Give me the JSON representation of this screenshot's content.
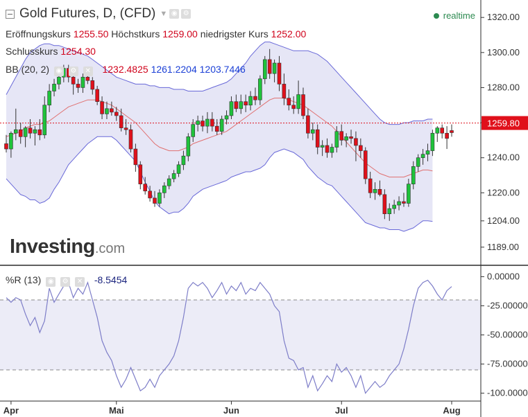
{
  "header": {
    "title": "Gold Futures, D, (CFD)",
    "realtime_label": "realtime",
    "open_label": "Eröffnungskurs",
    "open_value": "1255.50",
    "high_label": "Höchstkurs",
    "high_value": "1259.00",
    "low_label": "niedrigster Kurs",
    "low_value": "1252.00",
    "close_label": "Schlusskurs",
    "close_value": "1254.30"
  },
  "bb_legend": {
    "label": "BB (20, 2)",
    "middle": "1232.4825",
    "upper": "1261.2204",
    "lower": "1203.7446"
  },
  "wr_legend": {
    "label": "%R (13)",
    "value": "-8.5454"
  },
  "logo": {
    "name": "Investing",
    "suffix": ".com"
  },
  "colors": {
    "up": "#1fc23b",
    "down": "#e0101b",
    "bb_fill": "#e6e6f6",
    "bb_band": "#6868d8",
    "bb_mid": "#e07070",
    "wr_line": "#7d7dc8",
    "price_line": "#e0101b"
  },
  "chart_data": [
    {
      "type": "candlestick",
      "title": "Gold Futures, D, (CFD)",
      "x_ticks": [
        "Apr",
        "Mai",
        "Jun",
        "Jul",
        "Aug"
      ],
      "x_tick_index": [
        1,
        23,
        47,
        70,
        93
      ],
      "y_ticks": [
        1320.0,
        1300.0,
        1280.0,
        1260.0,
        1240.0,
        1220.0,
        1204.0,
        1189.0
      ],
      "y_tick_labels": [
        "1320.00",
        "1300.00",
        "1280.00",
        "1260.00",
        "1240.00",
        "1220.00",
        "1204.00",
        "1189.00"
      ],
      "ylim": [
        1183,
        1326
      ],
      "last_price": 1259.8,
      "last_price_label": "1259.80",
      "candles": [
        [
          1248,
          1253,
          1243,
          1245
        ],
        [
          1245,
          1255,
          1240,
          1254
        ],
        [
          1254,
          1268,
          1250,
          1256
        ],
        [
          1256,
          1260,
          1248,
          1252
        ],
        [
          1252,
          1258,
          1246,
          1257
        ],
        [
          1257,
          1262,
          1251,
          1254
        ],
        [
          1254,
          1258,
          1247,
          1256
        ],
        [
          1256,
          1262,
          1250,
          1253
        ],
        [
          1253,
          1275,
          1251,
          1270
        ],
        [
          1270,
          1282,
          1266,
          1278
        ],
        [
          1278,
          1285,
          1275,
          1282
        ],
        [
          1282,
          1292,
          1279,
          1286
        ],
        [
          1286,
          1293,
          1283,
          1291
        ],
        [
          1291,
          1293,
          1283,
          1286
        ],
        [
          1286,
          1288,
          1276,
          1282
        ],
        [
          1282,
          1285,
          1277,
          1280
        ],
        [
          1280,
          1288,
          1277,
          1286
        ],
        [
          1286,
          1290,
          1282,
          1284
        ],
        [
          1284,
          1286,
          1276,
          1279
        ],
        [
          1279,
          1281,
          1270,
          1272
        ],
        [
          1272,
          1275,
          1262,
          1265
        ],
        [
          1265,
          1272,
          1262,
          1268
        ],
        [
          1268,
          1272,
          1264,
          1266
        ],
        [
          1266,
          1269,
          1261,
          1264
        ],
        [
          1264,
          1268,
          1255,
          1257
        ],
        [
          1257,
          1262,
          1253,
          1256
        ],
        [
          1256,
          1259,
          1243,
          1245
        ],
        [
          1245,
          1248,
          1232,
          1236
        ],
        [
          1236,
          1238,
          1222,
          1225
        ],
        [
          1225,
          1229,
          1219,
          1221
        ],
        [
          1221,
          1224,
          1215,
          1217
        ],
        [
          1217,
          1221,
          1212,
          1214
        ],
        [
          1214,
          1222,
          1212,
          1220
        ],
        [
          1220,
          1226,
          1217,
          1224
        ],
        [
          1224,
          1230,
          1222,
          1228
        ],
        [
          1228,
          1233,
          1226,
          1231
        ],
        [
          1231,
          1238,
          1229,
          1236
        ],
        [
          1236,
          1244,
          1233,
          1241
        ],
        [
          1241,
          1254,
          1238,
          1252
        ],
        [
          1252,
          1262,
          1249,
          1259
        ],
        [
          1259,
          1264,
          1255,
          1261
        ],
        [
          1261,
          1264,
          1255,
          1258
        ],
        [
          1258,
          1266,
          1254,
          1262
        ],
        [
          1262,
          1266,
          1255,
          1258
        ],
        [
          1258,
          1262,
          1253,
          1255
        ],
        [
          1255,
          1264,
          1253,
          1262
        ],
        [
          1262,
          1267,
          1259,
          1264
        ],
        [
          1264,
          1275,
          1262,
          1272
        ],
        [
          1272,
          1276,
          1266,
          1268
        ],
        [
          1268,
          1276,
          1265,
          1272
        ],
        [
          1272,
          1276,
          1266,
          1270
        ],
        [
          1270,
          1278,
          1267,
          1275
        ],
        [
          1275,
          1280,
          1270,
          1273
        ],
        [
          1273,
          1287,
          1270,
          1285
        ],
        [
          1285,
          1298,
          1282,
          1296
        ],
        [
          1296,
          1302,
          1285,
          1288
        ],
        [
          1288,
          1296,
          1283,
          1294
        ],
        [
          1294,
          1298,
          1278,
          1282
        ],
        [
          1282,
          1288,
          1270,
          1274
        ],
        [
          1274,
          1279,
          1267,
          1270
        ],
        [
          1270,
          1275,
          1265,
          1268
        ],
        [
          1268,
          1284,
          1265,
          1276
        ],
        [
          1276,
          1280,
          1262,
          1264
        ],
        [
          1264,
          1268,
          1251,
          1254
        ],
        [
          1254,
          1260,
          1250,
          1256
        ],
        [
          1256,
          1259,
          1242,
          1246
        ],
        [
          1246,
          1250,
          1241,
          1247
        ],
        [
          1247,
          1251,
          1240,
          1243
        ],
        [
          1243,
          1248,
          1240,
          1246
        ],
        [
          1246,
          1258,
          1243,
          1255
        ],
        [
          1255,
          1259,
          1247,
          1250
        ],
        [
          1250,
          1254,
          1246,
          1252
        ],
        [
          1252,
          1256,
          1248,
          1251
        ],
        [
          1251,
          1255,
          1238,
          1247
        ],
        [
          1247,
          1251,
          1240,
          1244
        ],
        [
          1244,
          1246,
          1225,
          1228
        ],
        [
          1228,
          1232,
          1217,
          1220
        ],
        [
          1220,
          1226,
          1216,
          1222
        ],
        [
          1222,
          1227,
          1218,
          1219
        ],
        [
          1219,
          1222,
          1205,
          1208
        ],
        [
          1208,
          1214,
          1204,
          1211
        ],
        [
          1211,
          1216,
          1208,
          1213
        ],
        [
          1213,
          1218,
          1210,
          1215
        ],
        [
          1215,
          1220,
          1212,
          1214
        ],
        [
          1214,
          1228,
          1212,
          1225
        ],
        [
          1225,
          1238,
          1222,
          1235
        ],
        [
          1235,
          1242,
          1232,
          1240
        ],
        [
          1240,
          1245,
          1236,
          1242
        ],
        [
          1242,
          1248,
          1238,
          1244
        ],
        [
          1244,
          1256,
          1241,
          1254
        ],
        [
          1254,
          1258,
          1249,
          1257
        ],
        [
          1257,
          1259,
          1251,
          1254
        ],
        [
          1254,
          1258,
          1245,
          1251
        ],
        [
          1255.5,
          1259.0,
          1252.0,
          1254.3
        ]
      ],
      "series": [
        {
          "name": "BB upper",
          "values": [
            1276,
            1281,
            1286,
            1291,
            1296,
            1300,
            1302,
            1304,
            1305,
            1305,
            1304,
            1304,
            1303,
            1302,
            1301,
            1300,
            1299,
            1298,
            1296,
            1294,
            1292,
            1290,
            1288,
            1286,
            1285,
            1284,
            1283,
            1282,
            1282,
            1282,
            1281,
            1281,
            1280,
            1280,
            1280,
            1279,
            1279,
            1279,
            1278,
            1278,
            1278,
            1278,
            1279,
            1280,
            1281,
            1282,
            1283,
            1285,
            1288,
            1291,
            1294,
            1298,
            1301,
            1304,
            1306,
            1306,
            1305,
            1304,
            1303,
            1302,
            1301,
            1301,
            1301,
            1301,
            1300,
            1299,
            1297,
            1295,
            1292,
            1289,
            1286,
            1283,
            1280,
            1277,
            1274,
            1271,
            1268,
            1265,
            1262,
            1260,
            1259,
            1259,
            1259,
            1260,
            1260,
            1261,
            1261,
            1261,
            1262,
            1262,
            1262,
            1262,
            1262,
            1261.2
          ]
        },
        {
          "name": "BB middle",
          "values": [
            1252,
            1253,
            1254,
            1255,
            1257,
            1258,
            1259,
            1259,
            1260,
            1261,
            1263,
            1265,
            1267,
            1269,
            1270,
            1271,
            1272,
            1273,
            1273,
            1273,
            1272,
            1271,
            1270,
            1268,
            1266,
            1264,
            1262,
            1260,
            1257,
            1254,
            1251,
            1248,
            1246,
            1245,
            1244,
            1244,
            1244,
            1245,
            1246,
            1248,
            1249,
            1250,
            1251,
            1252,
            1253,
            1254,
            1255,
            1257,
            1259,
            1261,
            1263,
            1265,
            1267,
            1269,
            1271,
            1273,
            1274,
            1274,
            1274,
            1273,
            1272,
            1271,
            1270,
            1268,
            1266,
            1264,
            1262,
            1260,
            1258,
            1255,
            1252,
            1249,
            1246,
            1243,
            1240,
            1237,
            1235,
            1233,
            1231,
            1230,
            1229,
            1229,
            1229,
            1229,
            1230,
            1231,
            1232,
            1233,
            1233,
            1232.5
          ]
        },
        {
          "name": "BB lower",
          "values": [
            1228,
            1225,
            1222,
            1219,
            1218,
            1216,
            1216,
            1214,
            1215,
            1217,
            1222,
            1226,
            1231,
            1236,
            1239,
            1242,
            1245,
            1248,
            1250,
            1252,
            1252,
            1252,
            1252,
            1250,
            1247,
            1244,
            1241,
            1238,
            1232,
            1226,
            1221,
            1215,
            1212,
            1210,
            1208,
            1209,
            1209,
            1211,
            1214,
            1218,
            1220,
            1222,
            1223,
            1224,
            1225,
            1226,
            1227,
            1229,
            1230,
            1231,
            1232,
            1232,
            1233,
            1234,
            1236,
            1240,
            1243,
            1244,
            1245,
            1244,
            1243,
            1241,
            1239,
            1235,
            1232,
            1229,
            1227,
            1225,
            1224,
            1221,
            1218,
            1215,
            1212,
            1209,
            1206,
            1203,
            1202,
            1201,
            1200,
            1200,
            1199,
            1199,
            1199,
            1198,
            1199,
            1200,
            1202,
            1204,
            1204,
            1203.7
          ]
        }
      ]
    },
    {
      "type": "line",
      "title": "%R (13)",
      "ylim": [
        -105,
        5
      ],
      "y_ticks": [
        0,
        -25,
        -50,
        -75,
        -100
      ],
      "y_tick_labels": [
        "0.00000",
        "-25.00000",
        "-50.00000",
        "-75.00000",
        "-100.00000"
      ],
      "levels": [
        -20,
        -80
      ],
      "series": [
        {
          "name": "%R (13)",
          "values": [
            -18,
            -22,
            -18,
            -20,
            -32,
            -42,
            -35,
            -48,
            -38,
            -10,
            -22,
            -15,
            -8,
            -5,
            -18,
            -10,
            -15,
            -5,
            -20,
            -35,
            -55,
            -65,
            -72,
            -85,
            -95,
            -88,
            -78,
            -88,
            -98,
            -95,
            -88,
            -95,
            -85,
            -80,
            -75,
            -68,
            -55,
            -35,
            -10,
            -5,
            -8,
            -5,
            -10,
            -18,
            -12,
            -5,
            -15,
            -8,
            -12,
            -5,
            -15,
            -10,
            -12,
            -5,
            -10,
            -15,
            -25,
            -30,
            -55,
            -70,
            -72,
            -80,
            -78,
            -95,
            -85,
            -98,
            -92,
            -85,
            -90,
            -75,
            -82,
            -78,
            -85,
            -95,
            -85,
            -100,
            -95,
            -90,
            -95,
            -92,
            -85,
            -80,
            -75,
            -62,
            -45,
            -25,
            -10,
            -5,
            -3,
            -8,
            -15,
            -20,
            -12,
            -8.5
          ]
        }
      ]
    }
  ]
}
